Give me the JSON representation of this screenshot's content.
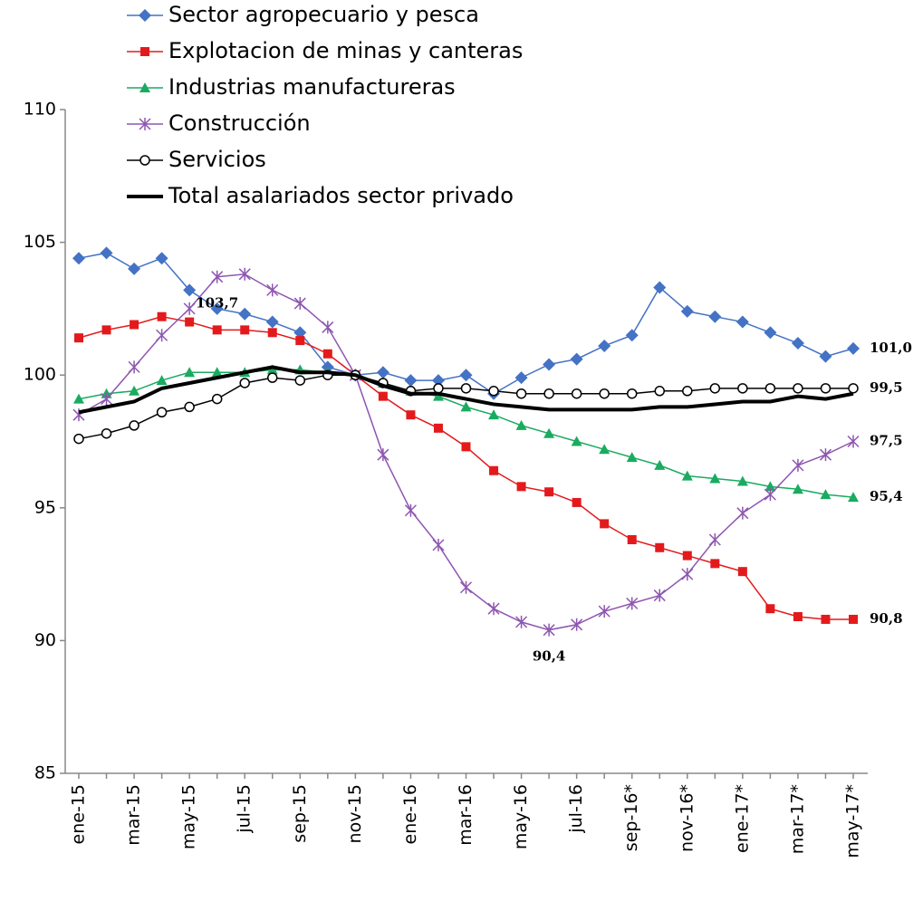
{
  "chart_data": {
    "type": "line",
    "categories": [
      "ene-15",
      null,
      "mar-15",
      null,
      "may-15",
      null,
      "jul-15",
      null,
      "sep-15",
      null,
      "nov-15",
      null,
      "ene-16",
      null,
      "mar-16",
      null,
      "may-16",
      null,
      "jul-16",
      null,
      "sep-16*",
      null,
      "nov-16*",
      null,
      "ene-17*",
      null,
      "mar-17*",
      null,
      "may-17*"
    ],
    "ylim": [
      85,
      110
    ],
    "yticks": [
      85,
      90,
      95,
      100,
      105,
      110
    ],
    "series": [
      {
        "name": "Sector agropecuario y pesca",
        "color": "#4472c4",
        "marker": "diamond",
        "values": [
          104.4,
          104.6,
          104.0,
          104.4,
          103.2,
          102.5,
          102.3,
          102.0,
          101.6,
          100.3,
          100.0,
          100.1,
          99.8,
          99.8,
          100.0,
          99.3,
          99.9,
          100.4,
          100.6,
          101.1,
          101.5,
          103.3,
          102.4,
          102.2,
          102.0,
          101.6,
          101.2,
          100.7,
          101.0
        ],
        "value_labels": [
          null,
          null,
          null,
          null,
          null,
          null,
          null,
          null,
          null,
          null,
          null,
          null,
          null,
          null,
          null,
          null,
          null,
          null,
          null,
          null,
          null,
          null,
          null,
          null,
          null,
          null,
          null,
          null,
          "101,0"
        ]
      },
      {
        "name": "Explotacion de minas y canteras",
        "color": "#e31a1c",
        "marker": "square",
        "values": [
          101.4,
          101.7,
          101.9,
          102.2,
          102.0,
          101.7,
          101.7,
          101.6,
          101.3,
          100.8,
          100.0,
          99.2,
          98.5,
          98.0,
          97.3,
          96.4,
          95.8,
          95.6,
          95.2,
          94.4,
          93.8,
          93.5,
          93.2,
          92.9,
          92.6,
          91.2,
          90.9,
          90.8,
          90.8
        ],
        "value_labels": [
          null,
          null,
          null,
          null,
          null,
          null,
          null,
          null,
          null,
          null,
          null,
          null,
          null,
          null,
          null,
          null,
          null,
          null,
          null,
          null,
          null,
          null,
          null,
          null,
          null,
          null,
          null,
          null,
          "90,8"
        ]
      },
      {
        "name": "Industrias manufactureras",
        "color": "#1aab60",
        "marker": "triangle",
        "values": [
          99.1,
          99.3,
          99.4,
          99.8,
          100.1,
          100.1,
          100.1,
          100.2,
          100.2,
          100.1,
          100.0,
          99.7,
          99.4,
          99.2,
          98.8,
          98.5,
          98.1,
          97.8,
          97.5,
          97.2,
          96.9,
          96.6,
          96.2,
          96.1,
          96.0,
          95.8,
          95.7,
          95.5,
          95.4
        ],
        "value_labels": [
          null,
          null,
          null,
          null,
          null,
          null,
          null,
          null,
          null,
          null,
          null,
          null,
          null,
          null,
          null,
          null,
          null,
          null,
          null,
          null,
          null,
          null,
          null,
          null,
          null,
          null,
          null,
          null,
          "95,4"
        ]
      },
      {
        "name": "Construcción",
        "color": "#8e56b0",
        "marker": "star",
        "values": [
          98.5,
          99.1,
          100.3,
          101.5,
          102.5,
          103.7,
          103.8,
          103.2,
          102.7,
          101.8,
          100.0,
          97.0,
          94.9,
          93.6,
          92.0,
          91.2,
          90.7,
          90.4,
          90.6,
          91.1,
          91.4,
          91.7,
          92.5,
          93.8,
          94.8,
          95.5,
          96.6,
          97.0,
          97.5
        ],
        "value_labels": [
          null,
          null,
          null,
          null,
          null,
          "103,7",
          null,
          null,
          null,
          null,
          null,
          null,
          null,
          null,
          null,
          null,
          null,
          "90,4",
          null,
          null,
          null,
          null,
          null,
          null,
          null,
          null,
          null,
          null,
          "97,5"
        ]
      },
      {
        "name": "Servicios",
        "color": "#000000",
        "marker": "circle",
        "values": [
          97.6,
          97.8,
          98.1,
          98.6,
          98.8,
          99.1,
          99.7,
          99.9,
          99.8,
          100.0,
          100.0,
          99.7,
          99.4,
          99.5,
          99.5,
          99.4,
          99.3,
          99.3,
          99.3,
          99.3,
          99.3,
          99.4,
          99.4,
          99.5,
          99.5,
          99.5,
          99.5,
          99.5,
          99.5
        ],
        "value_labels": [
          null,
          null,
          null,
          null,
          null,
          null,
          null,
          null,
          null,
          null,
          null,
          null,
          null,
          null,
          null,
          null,
          null,
          null,
          null,
          null,
          null,
          null,
          null,
          null,
          null,
          null,
          null,
          null,
          "99,5"
        ]
      },
      {
        "name": "Total asalariados sector privado",
        "color": "#000000",
        "marker": "none",
        "width": 4,
        "values": [
          98.6,
          98.8,
          99.0,
          99.5,
          99.7,
          99.9,
          100.1,
          100.3,
          100.1,
          100.1,
          100.0,
          99.6,
          99.3,
          99.3,
          99.1,
          98.9,
          98.8,
          98.7,
          98.7,
          98.7,
          98.7,
          98.8,
          98.8,
          98.9,
          99.0,
          99.0,
          99.2,
          99.1,
          99.3
        ]
      }
    ]
  }
}
